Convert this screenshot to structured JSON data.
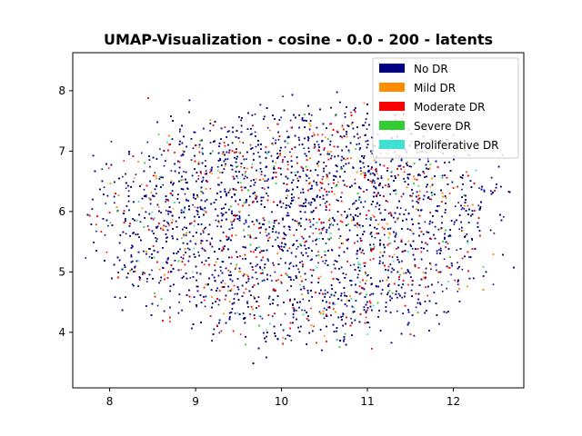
{
  "chart_data": {
    "type": "scatter",
    "title": "UMAP-Visualization - cosine - 0.0 - 200 - latents",
    "xlabel": "",
    "ylabel": "",
    "xlim": [
      7.57,
      12.82
    ],
    "ylim": [
      3.08,
      8.63
    ],
    "xticks": [
      8,
      9,
      10,
      11,
      12
    ],
    "yticks": [
      4,
      5,
      6,
      7,
      8
    ],
    "grid": false,
    "legend_position": "top-right",
    "point_cloud": {
      "center_x": 10.2,
      "center_y": 5.8,
      "spread_x": 1.0,
      "spread_y": 0.85,
      "point_count": 9000
    },
    "series": [
      {
        "name": "No DR",
        "color": "#000080",
        "share": 0.73
      },
      {
        "name": "Mild DR",
        "color": "#ff8c00",
        "share": 0.07
      },
      {
        "name": "Moderate DR",
        "color": "#ff0000",
        "share": 0.15
      },
      {
        "name": "Severe DR",
        "color": "#32cd32",
        "share": 0.03
      },
      {
        "name": "Proliferative DR",
        "color": "#40e0d0",
        "share": 0.02
      }
    ]
  }
}
